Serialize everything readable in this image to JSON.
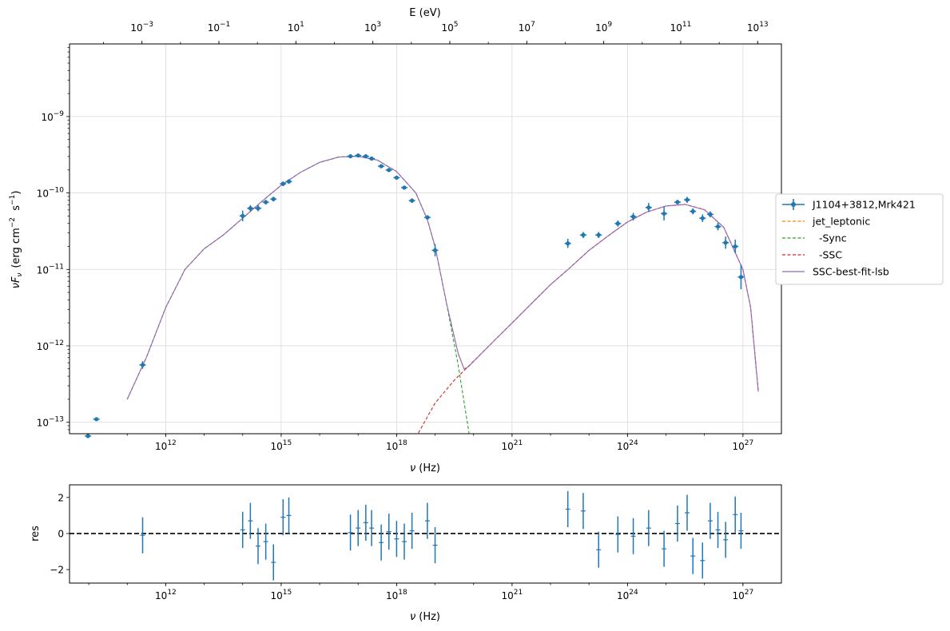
{
  "chart_data": [
    {
      "type": "scatter",
      "xlabel_html": "ν  (Hz)",
      "ylabel_parts": {
        "nu": "ν",
        "F": "F",
        "sub": "ν",
        "units": "(erg cm",
        "exp1": "−2",
        "mid": "  s",
        "exp2": "−1",
        "close": ")"
      },
      "top_xlabel": "E (eV)",
      "x_scale": "log",
      "y_scale": "log",
      "xlim_log10": [
        9.5,
        28.0
      ],
      "ylim_log10": [
        -13.15,
        -8.05
      ],
      "x_ticks": [
        {
          "mant": "10",
          "exp": "12",
          "v": 12
        },
        {
          "mant": "10",
          "exp": "15",
          "v": 15
        },
        {
          "mant": "10",
          "exp": "18",
          "v": 18
        },
        {
          "mant": "10",
          "exp": "21",
          "v": 21
        },
        {
          "mant": "10",
          "exp": "24",
          "v": 24
        },
        {
          "mant": "10",
          "exp": "27",
          "v": 27
        }
      ],
      "y_ticks": [
        {
          "mant": "10",
          "exp": "−13",
          "v": -13
        },
        {
          "mant": "10",
          "exp": "−12",
          "v": -12
        },
        {
          "mant": "10",
          "exp": "−11",
          "v": -11
        },
        {
          "mant": "10",
          "exp": "−10",
          "v": -10
        },
        {
          "mant": "10",
          "exp": "−9",
          "v": -9
        }
      ],
      "top_ticks": [
        {
          "mant": "10",
          "exp": "−3",
          "v": -3
        },
        {
          "mant": "10",
          "exp": "−1",
          "v": -1
        },
        {
          "mant": "10",
          "exp": "1",
          "v": 1
        },
        {
          "mant": "10",
          "exp": "3",
          "v": 3
        },
        {
          "mant": "10",
          "exp": "5",
          "v": 5
        },
        {
          "mant": "10",
          "exp": "7",
          "v": 7
        },
        {
          "mant": "10",
          "exp": "9",
          "v": 9
        },
        {
          "mant": "10",
          "exp": "11",
          "v": 11
        },
        {
          "mant": "10",
          "exp": "13",
          "v": 13
        }
      ],
      "grid": true,
      "legend_position": "outside-right",
      "legend": [
        {
          "label": "J1104+3812,Mrk421",
          "color": "#1f77b4",
          "style": "errorbar"
        },
        {
          "label": "jet_leptonic",
          "color": "#ff7f0e",
          "style": "dashed"
        },
        {
          "label": "  -Sync",
          "color": "#2ca02c",
          "style": "dashed"
        },
        {
          "label": "  -SSC",
          "color": "#d62728",
          "style": "dashed"
        },
        {
          "label": "SSC-best-fit-lsb",
          "color": "#9467bd",
          "style": "solid"
        }
      ],
      "data_points_log10": [
        {
          "x": 9.98,
          "y": -13.18,
          "dy": 0.02
        },
        {
          "x": 10.2,
          "y": -12.96,
          "dy": 0.02
        },
        {
          "x": 11.4,
          "y": -12.25,
          "dy": 0.05
        },
        {
          "x": 14.0,
          "y": -10.3,
          "dy": 0.07
        },
        {
          "x": 14.2,
          "y": -10.2,
          "dy": 0.04
        },
        {
          "x": 14.4,
          "y": -10.2,
          "dy": 0.04
        },
        {
          "x": 14.6,
          "y": -10.12,
          "dy": 0.03
        },
        {
          "x": 14.8,
          "y": -10.08,
          "dy": 0.03
        },
        {
          "x": 15.05,
          "y": -9.88,
          "dy": 0.03
        },
        {
          "x": 15.2,
          "y": -9.85,
          "dy": 0.03
        },
        {
          "x": 16.8,
          "y": -9.52,
          "dy": 0.02
        },
        {
          "x": 17.0,
          "y": -9.51,
          "dy": 0.02
        },
        {
          "x": 17.2,
          "y": -9.52,
          "dy": 0.02
        },
        {
          "x": 17.35,
          "y": -9.55,
          "dy": 0.02
        },
        {
          "x": 17.6,
          "y": -9.65,
          "dy": 0.02
        },
        {
          "x": 17.8,
          "y": -9.7,
          "dy": 0.02
        },
        {
          "x": 18.0,
          "y": -9.8,
          "dy": 0.02
        },
        {
          "x": 18.2,
          "y": -9.93,
          "dy": 0.02
        },
        {
          "x": 18.4,
          "y": -10.1,
          "dy": 0.03
        },
        {
          "x": 18.8,
          "y": -10.32,
          "dy": 0.03
        },
        {
          "x": 19.0,
          "y": -10.75,
          "dy": 0.08
        },
        {
          "x": 22.45,
          "y": -10.66,
          "dy": 0.06
        },
        {
          "x": 22.85,
          "y": -10.55,
          "dy": 0.04
        },
        {
          "x": 23.25,
          "y": -10.55,
          "dy": 0.04
        },
        {
          "x": 23.75,
          "y": -10.4,
          "dy": 0.04
        },
        {
          "x": 24.15,
          "y": -10.31,
          "dy": 0.05
        },
        {
          "x": 24.55,
          "y": -10.19,
          "dy": 0.06
        },
        {
          "x": 24.95,
          "y": -10.27,
          "dy": 0.09
        },
        {
          "x": 25.3,
          "y": -10.12,
          "dy": 0.03
        },
        {
          "x": 25.55,
          "y": -10.09,
          "dy": 0.04
        },
        {
          "x": 25.7,
          "y": -10.24,
          "dy": 0.04
        },
        {
          "x": 25.95,
          "y": -10.33,
          "dy": 0.05
        },
        {
          "x": 26.15,
          "y": -10.28,
          "dy": 0.04
        },
        {
          "x": 26.35,
          "y": -10.44,
          "dy": 0.05
        },
        {
          "x": 26.55,
          "y": -10.65,
          "dy": 0.08
        },
        {
          "x": 26.8,
          "y": -10.7,
          "dy": 0.09
        },
        {
          "x": 26.95,
          "y": -11.1,
          "dy": 0.16
        }
      ],
      "model_sync_log10": [
        [
          11.0,
          -12.7
        ],
        [
          11.5,
          -12.15
        ],
        [
          12.0,
          -11.5
        ],
        [
          12.5,
          -11.0
        ],
        [
          13.0,
          -10.73
        ],
        [
          13.5,
          -10.55
        ],
        [
          14.0,
          -10.33
        ],
        [
          14.5,
          -10.11
        ],
        [
          15.0,
          -9.9
        ],
        [
          15.5,
          -9.73
        ],
        [
          16.0,
          -9.6
        ],
        [
          16.5,
          -9.53
        ],
        [
          17.0,
          -9.52
        ],
        [
          17.5,
          -9.57
        ],
        [
          18.0,
          -9.72
        ],
        [
          18.5,
          -10.0
        ],
        [
          18.8,
          -10.35
        ],
        [
          19.0,
          -10.7
        ],
        [
          19.3,
          -11.45
        ],
        [
          19.6,
          -12.25
        ],
        [
          19.9,
          -13.2
        ]
      ],
      "model_ssc_log10": [
        [
          18.5,
          -13.2
        ],
        [
          19.0,
          -12.75
        ],
        [
          19.5,
          -12.45
        ],
        [
          19.8,
          -12.3
        ],
        [
          20.5,
          -11.95
        ],
        [
          21.0,
          -11.7
        ],
        [
          21.5,
          -11.45
        ],
        [
          22.0,
          -11.2
        ],
        [
          22.5,
          -10.98
        ],
        [
          23.0,
          -10.75
        ],
        [
          23.5,
          -10.56
        ],
        [
          24.0,
          -10.38
        ],
        [
          24.5,
          -10.25
        ],
        [
          25.0,
          -10.17
        ],
        [
          25.5,
          -10.15
        ],
        [
          26.0,
          -10.22
        ],
        [
          26.5,
          -10.45
        ],
        [
          27.0,
          -11.0
        ],
        [
          27.2,
          -11.5
        ],
        [
          27.4,
          -12.6
        ]
      ],
      "model_total_log10": [
        [
          11.0,
          -12.7
        ],
        [
          11.5,
          -12.15
        ],
        [
          12.0,
          -11.5
        ],
        [
          12.5,
          -11.0
        ],
        [
          13.0,
          -10.73
        ],
        [
          13.5,
          -10.55
        ],
        [
          14.0,
          -10.33
        ],
        [
          14.5,
          -10.11
        ],
        [
          15.0,
          -9.9
        ],
        [
          15.5,
          -9.73
        ],
        [
          16.0,
          -9.6
        ],
        [
          16.5,
          -9.53
        ],
        [
          17.0,
          -9.52
        ],
        [
          17.5,
          -9.57
        ],
        [
          18.0,
          -9.72
        ],
        [
          18.5,
          -10.0
        ],
        [
          18.8,
          -10.35
        ],
        [
          19.0,
          -10.7
        ],
        [
          19.3,
          -11.45
        ],
        [
          19.6,
          -12.1
        ],
        [
          19.75,
          -12.3
        ],
        [
          19.85,
          -12.28
        ],
        [
          20.5,
          -11.95
        ],
        [
          21.0,
          -11.7
        ],
        [
          21.5,
          -11.45
        ],
        [
          22.0,
          -11.2
        ],
        [
          22.5,
          -10.98
        ],
        [
          23.0,
          -10.75
        ],
        [
          23.5,
          -10.56
        ],
        [
          24.0,
          -10.38
        ],
        [
          24.5,
          -10.25
        ],
        [
          25.0,
          -10.17
        ],
        [
          25.5,
          -10.15
        ],
        [
          26.0,
          -10.22
        ],
        [
          26.5,
          -10.45
        ],
        [
          27.0,
          -11.0
        ],
        [
          27.2,
          -11.5
        ],
        [
          27.4,
          -12.6
        ]
      ]
    },
    {
      "type": "scatter",
      "xlabel_html": "ν  (Hz)",
      "ylabel": "res",
      "ylim": [
        -2.75,
        2.7
      ],
      "y_ticks": [
        {
          "label": "2",
          "v": 2
        },
        {
          "label": "0",
          "v": 0
        },
        {
          "label": "−2",
          "v": -2
        }
      ],
      "reference_line": 0,
      "residuals": [
        {
          "x": 11.4,
          "y": -0.1,
          "dy": 1.0
        },
        {
          "x": 14.0,
          "y": 0.2,
          "dy": 1.0
        },
        {
          "x": 14.2,
          "y": 0.7,
          "dy": 1.0
        },
        {
          "x": 14.4,
          "y": -0.7,
          "dy": 1.0
        },
        {
          "x": 14.6,
          "y": -0.45,
          "dy": 1.0
        },
        {
          "x": 14.8,
          "y": -1.6,
          "dy": 1.0
        },
        {
          "x": 15.05,
          "y": 0.9,
          "dy": 1.0
        },
        {
          "x": 15.2,
          "y": 1.0,
          "dy": 1.0
        },
        {
          "x": 16.8,
          "y": 0.05,
          "dy": 1.0
        },
        {
          "x": 17.0,
          "y": 0.3,
          "dy": 1.0
        },
        {
          "x": 17.2,
          "y": 0.6,
          "dy": 1.0
        },
        {
          "x": 17.35,
          "y": 0.3,
          "dy": 1.0
        },
        {
          "x": 17.6,
          "y": -0.5,
          "dy": 1.0
        },
        {
          "x": 17.8,
          "y": 0.1,
          "dy": 1.0
        },
        {
          "x": 18.0,
          "y": -0.3,
          "dy": 1.0
        },
        {
          "x": 18.2,
          "y": -0.45,
          "dy": 1.0
        },
        {
          "x": 18.4,
          "y": 0.15,
          "dy": 1.0
        },
        {
          "x": 18.8,
          "y": 0.7,
          "dy": 1.0
        },
        {
          "x": 19.0,
          "y": -0.65,
          "dy": 1.0
        },
        {
          "x": 22.45,
          "y": 1.35,
          "dy": 1.0
        },
        {
          "x": 22.85,
          "y": 1.25,
          "dy": 1.0
        },
        {
          "x": 23.25,
          "y": -0.9,
          "dy": 1.0
        },
        {
          "x": 23.75,
          "y": -0.05,
          "dy": 1.0
        },
        {
          "x": 24.15,
          "y": -0.15,
          "dy": 1.0
        },
        {
          "x": 24.55,
          "y": 0.3,
          "dy": 1.0
        },
        {
          "x": 24.95,
          "y": -0.85,
          "dy": 1.0
        },
        {
          "x": 25.3,
          "y": 0.55,
          "dy": 1.0
        },
        {
          "x": 25.55,
          "y": 1.15,
          "dy": 1.0
        },
        {
          "x": 25.7,
          "y": -1.25,
          "dy": 1.0
        },
        {
          "x": 25.95,
          "y": -1.5,
          "dy": 1.0
        },
        {
          "x": 26.15,
          "y": 0.7,
          "dy": 1.0
        },
        {
          "x": 26.35,
          "y": 0.2,
          "dy": 1.0
        },
        {
          "x": 26.55,
          "y": -0.35,
          "dy": 1.0
        },
        {
          "x": 26.8,
          "y": 1.05,
          "dy": 1.0
        },
        {
          "x": 26.95,
          "y": 0.15,
          "dy": 1.0
        }
      ]
    }
  ],
  "colors": {
    "data": "#1f77b4",
    "jet": "#ff7f0e",
    "sync": "#2ca02c",
    "ssc": "#d62728",
    "total": "#9467bd",
    "grid": "#d9d9d9"
  }
}
